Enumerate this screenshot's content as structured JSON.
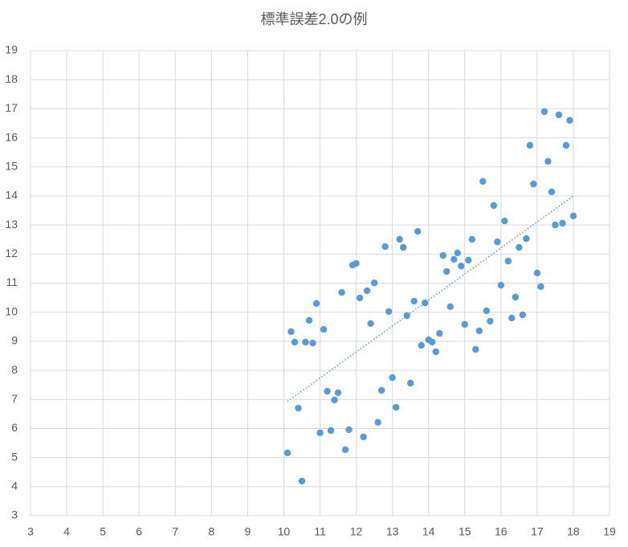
{
  "chart_data": {
    "type": "scatter",
    "title": "標準誤差2.0の例",
    "x": [
      10.1,
      10.2,
      10.3,
      10.4,
      10.5,
      10.6,
      10.7,
      10.8,
      10.9,
      11.0,
      11.1,
      11.2,
      11.3,
      11.4,
      11.5,
      11.6,
      11.7,
      11.8,
      11.9,
      12.0,
      12.1,
      12.2,
      12.3,
      12.4,
      12.5,
      12.6,
      12.7,
      12.8,
      12.9,
      13.0,
      13.1,
      13.2,
      13.3,
      13.4,
      13.5,
      13.6,
      13.7,
      13.8,
      13.9,
      14.0,
      14.1,
      14.2,
      14.3,
      14.4,
      14.5,
      14.6,
      14.7,
      14.8,
      14.9,
      15.0,
      15.1,
      15.2,
      15.3,
      15.4,
      15.5,
      15.6,
      15.7,
      15.8,
      15.9,
      16.0,
      16.1,
      16.2,
      16.3,
      16.4,
      16.5,
      16.6,
      16.7,
      16.8,
      16.9,
      17.0,
      17.1,
      17.2,
      17.3,
      17.4,
      17.5,
      17.6,
      17.7,
      17.8,
      17.9,
      18.0
    ],
    "values": [
      5.16,
      9.33,
      8.97,
      6.7,
      4.19,
      8.97,
      9.72,
      8.94,
      10.3,
      5.85,
      9.41,
      7.28,
      5.93,
      6.98,
      7.23,
      10.68,
      5.27,
      5.96,
      11.62,
      11.68,
      10.49,
      5.71,
      10.74,
      9.61,
      11.01,
      6.21,
      7.31,
      12.26,
      10.02,
      7.75,
      6.73,
      12.51,
      12.23,
      9.88,
      7.56,
      10.38,
      12.78,
      8.86,
      10.32,
      9.05,
      8.97,
      8.64,
      9.27,
      11.95,
      11.4,
      10.19,
      11.82,
      12.04,
      11.59,
      9.58,
      11.79,
      12.51,
      8.72,
      9.36,
      14.5,
      10.05,
      9.69,
      13.67,
      12.42,
      10.93,
      13.14,
      11.76,
      9.8,
      10.52,
      12.23,
      9.91,
      12.53,
      15.74,
      14.41,
      11.35,
      10.88,
      16.9,
      15.19,
      14.14,
      13.0,
      16.79,
      13.06,
      15.74,
      16.6,
      13.31
    ],
    "color": "#5b9bd5",
    "trendline": {
      "x": [
        10.1,
        18.0
      ],
      "y": [
        6.93,
        14.0
      ],
      "color": "#5b9bd5"
    },
    "xlim": [
      3,
      19
    ],
    "xticks": [
      3,
      4,
      5,
      6,
      7,
      8,
      9,
      10,
      11,
      12,
      13,
      14,
      15,
      16,
      17,
      18,
      19
    ],
    "ylim": [
      3,
      19
    ],
    "yticks": [
      3,
      4,
      5,
      6,
      7,
      8,
      9,
      10,
      11,
      12,
      13,
      14,
      15,
      16,
      17,
      18,
      19
    ],
    "grid": true
  }
}
